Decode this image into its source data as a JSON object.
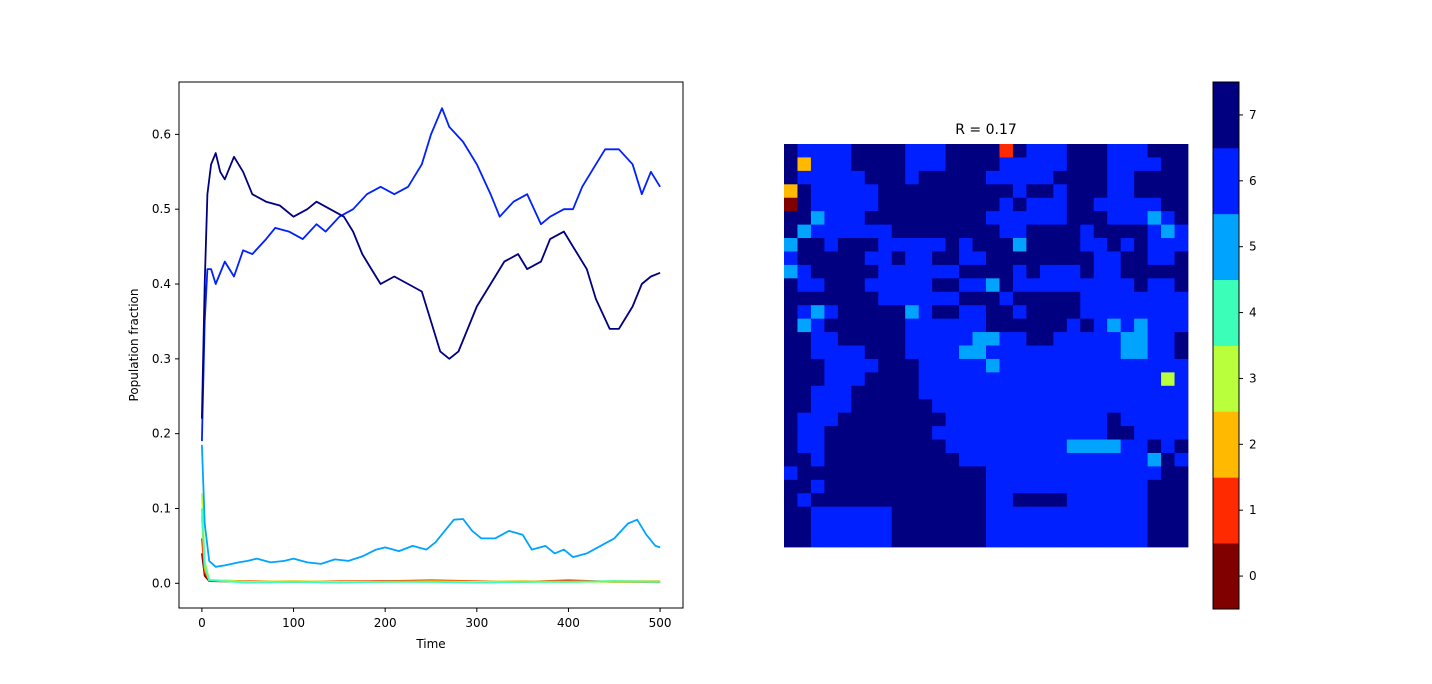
{
  "chart_data": [
    {
      "type": "line",
      "title": "",
      "xlabel": "Time",
      "ylabel": "Population fraction",
      "xlim": [
        -25,
        525
      ],
      "ylim": [
        -0.033,
        0.67
      ],
      "xticks": [
        0,
        100,
        200,
        300,
        400,
        500
      ],
      "xtick_labels": [
        "0",
        "100",
        "200",
        "300",
        "400",
        "500"
      ],
      "yticks": [
        0.0,
        0.1,
        0.2,
        0.3,
        0.4,
        0.5,
        0.6
      ],
      "ytick_labels": [
        "0.0",
        "0.1",
        "0.2",
        "0.3",
        "0.4",
        "0.5",
        "0.6"
      ],
      "grid": false,
      "series": [
        {
          "color": "#800000",
          "x": [
            0,
            3,
            8,
            50,
            100,
            150,
            200,
            250,
            300,
            350,
            400,
            450,
            500
          ],
          "values": [
            0.04,
            0.01,
            0.003,
            0.002,
            0.002,
            0.002,
            0.003,
            0.003,
            0.002,
            0.002,
            0.003,
            0.002,
            0.002
          ]
        },
        {
          "color": "#ff2a00",
          "x": [
            0,
            3,
            8,
            50,
            100,
            150,
            200,
            250,
            300,
            350,
            400,
            450,
            500
          ],
          "values": [
            0.06,
            0.015,
            0.004,
            0.003,
            0.002,
            0.003,
            0.003,
            0.004,
            0.003,
            0.002,
            0.004,
            0.002,
            0.002
          ]
        },
        {
          "color": "#ffb900",
          "x": [
            0,
            3,
            8,
            50,
            100,
            150,
            200,
            250,
            300,
            350,
            400,
            450,
            500
          ],
          "values": [
            0.09,
            0.02,
            0.004,
            0.002,
            0.003,
            0.002,
            0.002,
            0.003,
            0.002,
            0.003,
            0.002,
            0.003,
            0.003
          ]
        },
        {
          "color": "#b9ff3b",
          "x": [
            0,
            3,
            8,
            50,
            100,
            150,
            200,
            250,
            300,
            350,
            400,
            450,
            500
          ],
          "values": [
            0.12,
            0.03,
            0.005,
            0.002,
            0.002,
            0.002,
            0.002,
            0.002,
            0.002,
            0.002,
            0.002,
            0.002,
            0.002
          ]
        },
        {
          "color": "#3bffb9",
          "x": [
            0,
            3,
            8,
            50,
            100,
            150,
            200,
            250,
            300,
            350,
            400,
            450,
            500
          ],
          "values": [
            0.1,
            0.025,
            0.004,
            0.001,
            0.002,
            0.001,
            0.002,
            0.002,
            0.001,
            0.002,
            0.002,
            0.003,
            0.002
          ]
        },
        {
          "color": "#00a4ff",
          "x": [
            0,
            3,
            8,
            15,
            25,
            40,
            50,
            60,
            75,
            90,
            100,
            115,
            130,
            145,
            160,
            175,
            190,
            200,
            215,
            230,
            245,
            255,
            265,
            275,
            285,
            295,
            305,
            320,
            335,
            350,
            360,
            375,
            385,
            395,
            405,
            420,
            435,
            450,
            465,
            475,
            485,
            495,
            500
          ],
          "values": [
            0.185,
            0.08,
            0.03,
            0.022,
            0.024,
            0.028,
            0.03,
            0.033,
            0.028,
            0.03,
            0.033,
            0.028,
            0.026,
            0.032,
            0.03,
            0.036,
            0.045,
            0.048,
            0.043,
            0.05,
            0.045,
            0.055,
            0.07,
            0.085,
            0.086,
            0.07,
            0.06,
            0.06,
            0.07,
            0.065,
            0.045,
            0.05,
            0.04,
            0.045,
            0.035,
            0.04,
            0.05,
            0.06,
            0.08,
            0.085,
            0.065,
            0.05,
            0.048
          ]
        },
        {
          "color": "#0020ff",
          "x": [
            0,
            3,
            6,
            10,
            15,
            25,
            35,
            45,
            55,
            70,
            80,
            95,
            110,
            125,
            135,
            150,
            165,
            180,
            195,
            210,
            225,
            240,
            250,
            262,
            270,
            285,
            300,
            315,
            325,
            340,
            355,
            370,
            380,
            395,
            405,
            415,
            430,
            440,
            455,
            470,
            480,
            490,
            500
          ],
          "values": [
            0.19,
            0.35,
            0.42,
            0.42,
            0.4,
            0.43,
            0.41,
            0.445,
            0.44,
            0.46,
            0.475,
            0.47,
            0.46,
            0.48,
            0.47,
            0.49,
            0.5,
            0.52,
            0.53,
            0.52,
            0.53,
            0.56,
            0.6,
            0.635,
            0.61,
            0.59,
            0.56,
            0.52,
            0.49,
            0.51,
            0.52,
            0.48,
            0.49,
            0.5,
            0.5,
            0.53,
            0.56,
            0.58,
            0.58,
            0.56,
            0.52,
            0.55,
            0.53
          ]
        },
        {
          "color": "#000080",
          "x": [
            0,
            3,
            6,
            10,
            15,
            20,
            25,
            35,
            45,
            55,
            70,
            85,
            100,
            115,
            125,
            140,
            155,
            165,
            175,
            185,
            195,
            210,
            225,
            240,
            250,
            260,
            270,
            280,
            290,
            300,
            315,
            330,
            345,
            355,
            370,
            380,
            395,
            405,
            420,
            430,
            445,
            455,
            470,
            480,
            490,
            500
          ],
          "values": [
            0.22,
            0.4,
            0.52,
            0.56,
            0.575,
            0.55,
            0.54,
            0.57,
            0.55,
            0.52,
            0.51,
            0.505,
            0.49,
            0.5,
            0.51,
            0.5,
            0.49,
            0.47,
            0.44,
            0.42,
            0.4,
            0.41,
            0.4,
            0.39,
            0.35,
            0.31,
            0.3,
            0.31,
            0.34,
            0.37,
            0.4,
            0.43,
            0.44,
            0.42,
            0.43,
            0.46,
            0.47,
            0.45,
            0.42,
            0.38,
            0.34,
            0.34,
            0.37,
            0.4,
            0.41,
            0.415
          ]
        }
      ]
    },
    {
      "type": "heatmap",
      "title": "R = 0.17",
      "xlabel": "",
      "ylabel": "",
      "rows": 30,
      "cols": 30,
      "vmin": 0,
      "vmax": 7,
      "colorbar": {
        "ticks": [
          0,
          1,
          2,
          3,
          4,
          5,
          6,
          7
        ],
        "tick_labels": [
          "0",
          "1",
          "2",
          "3",
          "4",
          "5",
          "6",
          "7"
        ],
        "colors": [
          "#800000",
          "#ff2a00",
          "#ffb900",
          "#b9ff3b",
          "#3bffb9",
          "#00a4ff",
          "#0020ff",
          "#000080"
        ]
      },
      "grid": [
        "766667777666777717666777666777",
        "726667777666777766666777666677",
        "766666777677777666667777667777",
        "276666677777777776776777667777",
        "076666677777777767666776666677",
        "775666777777777666666777666567",
        "756666667777777766777767777656",
        "577677766666767775777766767666",
        "677777667667766777777776677667",
        "567777766666677776766676677777",
        "766777666667766576666666667667",
        "777777766666677767777766666666",
        "765677777567766776777766666666",
        "756777777666666777777676565666",
        "776677777666665566776666655667",
        "776666777666655666666666655667",
        "777666677766666566666666666666",
        "777666777766666666666666666636",
        "776667777766666666666666666666",
        "776667777776666666666666666666",
        "766677777777666666666666766666",
        "766777777776666666666666776666",
        "766777777777666666666555566767",
        "776777777777766666666666666576",
        "677777777777777666666666666677",
        "776777777777777666666666666777",
        "767777777777777667777666666777",
        "776666667777777666666666666777",
        "776666667777777666666666666777",
        "776666667777777666666666666777"
      ]
    }
  ]
}
